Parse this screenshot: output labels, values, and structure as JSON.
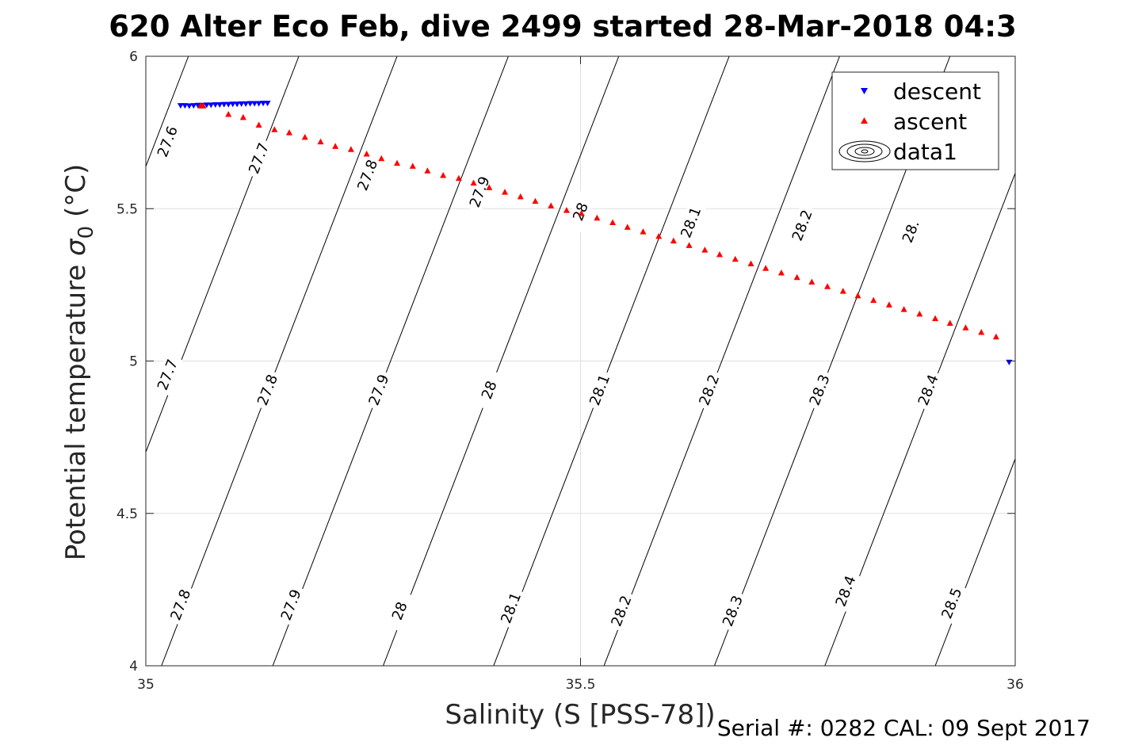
{
  "chart_data": {
    "type": "scatter",
    "title": "620 Alter Eco Feb, dive 2499 started 28-Mar-2018 04:3",
    "xlabel": "Salinity (S [PSS-78])",
    "ylabel_main": "Potential temperature ",
    "ylabel_sigma": "σ",
    "ylabel_sub": "0",
    "ylabel_unit": " (°C)",
    "xlim": [
      35,
      36
    ],
    "ylim": [
      4,
      6
    ],
    "x_ticks": [
      35,
      35.5,
      36
    ],
    "x_tick_labels": [
      "35",
      "35.5",
      "36"
    ],
    "y_ticks": [
      4,
      4.5,
      5,
      5.5,
      6
    ],
    "y_tick_labels": [
      "4",
      "4.5",
      "5",
      "5.5",
      "6"
    ],
    "grid": true,
    "legend_position": "top-right",
    "colors": {
      "descent": "#0000ff",
      "ascent": "#ff0000",
      "contour": "#000000",
      "grid": "#e0e0e0"
    },
    "series": [
      {
        "name": "descent",
        "marker": "triangle-down",
        "color": "#0000ff",
        "x": [
          35.04,
          35.045,
          35.05,
          35.055,
          35.06,
          35.065,
          35.07,
          35.075,
          35.08,
          35.085,
          35.09,
          35.095,
          35.1,
          35.105,
          35.11,
          35.115,
          35.12,
          35.125,
          35.13,
          35.135,
          35.14,
          35.993
        ],
        "y": [
          5.837,
          5.837,
          5.836,
          5.837,
          5.838,
          5.838,
          5.839,
          5.839,
          5.84,
          5.84,
          5.841,
          5.841,
          5.842,
          5.842,
          5.843,
          5.843,
          5.844,
          5.844,
          5.844,
          5.845,
          5.845,
          4.995
        ]
      },
      {
        "name": "ascent",
        "marker": "triangle-up",
        "color": "#ff0000",
        "x": [
          35.063,
          35.066,
          35.095,
          35.112,
          35.13,
          35.148,
          35.165,
          35.183,
          35.201,
          35.218,
          35.236,
          35.254,
          35.271,
          35.289,
          35.307,
          35.324,
          35.342,
          35.36,
          35.377,
          35.395,
          35.413,
          35.431,
          35.448,
          35.466,
          35.484,
          35.501,
          35.519,
          35.537,
          35.554,
          35.572,
          35.59,
          35.607,
          35.625,
          35.643,
          35.66,
          35.678,
          35.696,
          35.713,
          35.731,
          35.749,
          35.766,
          35.784,
          35.802,
          35.819,
          35.837,
          35.855,
          35.872,
          35.89,
          35.908,
          35.925,
          35.943,
          35.961,
          35.978
        ],
        "y": [
          5.838,
          5.838,
          5.81,
          5.8,
          5.775,
          5.76,
          5.75,
          5.735,
          5.72,
          5.705,
          5.695,
          5.68,
          5.665,
          5.65,
          5.64,
          5.625,
          5.61,
          5.6,
          5.585,
          5.57,
          5.555,
          5.54,
          5.525,
          5.51,
          5.495,
          5.485,
          5.47,
          5.455,
          5.44,
          5.425,
          5.41,
          5.395,
          5.38,
          5.365,
          5.35,
          5.335,
          5.32,
          5.305,
          5.29,
          5.275,
          5.26,
          5.245,
          5.23,
          5.215,
          5.2,
          5.185,
          5.17,
          5.155,
          5.14,
          5.125,
          5.11,
          5.095,
          5.08
        ]
      }
    ],
    "legend_entries": [
      "descent",
      "ascent",
      "data1"
    ],
    "contours": {
      "slope_S_per_C": 0.1355,
      "S_at_T4": [
        35.018,
        35.146,
        35.273,
        35.4,
        35.527,
        35.654,
        35.781,
        35.908
      ],
      "levels": [
        27.8,
        27.9,
        28,
        28.1,
        28.2,
        28.3,
        28.4,
        28.5
      ],
      "extra_lines": [
        {
          "S_at_T4": 34.905,
          "level": 27.7
        },
        {
          "S_at_T4": 34.778,
          "level": 27.6
        }
      ],
      "labels": [
        {
          "text": "27.6",
          "S": 35.025,
          "T": 5.72
        },
        {
          "text": "27.7",
          "S": 35.13,
          "T": 5.665
        },
        {
          "text": "27.8",
          "S": 35.255,
          "T": 5.61
        },
        {
          "text": "27.9",
          "S": 35.384,
          "T": 5.555
        },
        {
          "text": "28",
          "S": 35.5,
          "T": 5.49
        },
        {
          "text": "28.1",
          "S": 35.627,
          "T": 5.455
        },
        {
          "text": "28.2",
          "S": 35.755,
          "T": 5.445
        },
        {
          "text": "28.",
          "S": 35.88,
          "T": 5.425
        },
        {
          "text": "27.7",
          "S": 35.025,
          "T": 4.955
        },
        {
          "text": "27.8",
          "S": 35.14,
          "T": 4.905
        },
        {
          "text": "27.9",
          "S": 35.268,
          "T": 4.905
        },
        {
          "text": "28",
          "S": 35.395,
          "T": 4.905
        },
        {
          "text": "28.1",
          "S": 35.522,
          "T": 4.905
        },
        {
          "text": "28.2",
          "S": 35.648,
          "T": 4.905
        },
        {
          "text": "28.3",
          "S": 35.775,
          "T": 4.905
        },
        {
          "text": "28.4",
          "S": 35.9,
          "T": 4.905
        },
        {
          "text": "27.8",
          "S": 35.04,
          "T": 4.2
        },
        {
          "text": "27.9",
          "S": 35.167,
          "T": 4.2
        },
        {
          "text": "28",
          "S": 35.292,
          "T": 4.18
        },
        {
          "text": "28.1",
          "S": 35.42,
          "T": 4.19
        },
        {
          "text": "28.2",
          "S": 35.547,
          "T": 4.18
        },
        {
          "text": "28.3",
          "S": 35.675,
          "T": 4.18
        },
        {
          "text": "28.4",
          "S": 35.805,
          "T": 4.245
        },
        {
          "text": "28.5",
          "S": 35.927,
          "T": 4.205
        }
      ]
    }
  },
  "footer": "Serial #: 0282  CAL: 09 Sept 2017"
}
